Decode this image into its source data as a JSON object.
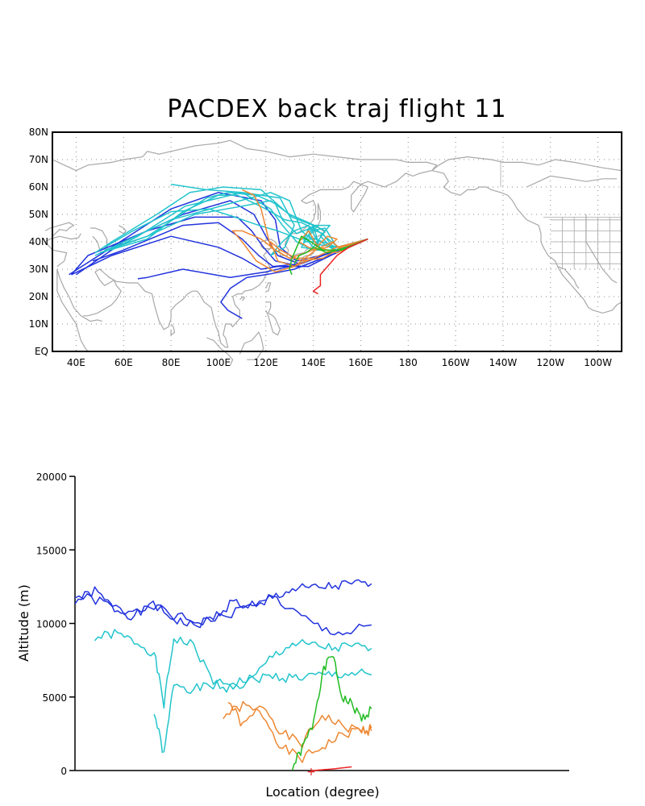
{
  "title": "PACDEX back traj flight 11",
  "colors": {
    "high": "#2233dd",
    "mid": "#22c4cc",
    "low": "#ee8833",
    "green": "#22bb22",
    "red": "#ee2222",
    "coast": "#a8a8a8",
    "grid": "#888888"
  },
  "map": {
    "lat_labels": [
      "80N",
      "70N",
      "60N",
      "50N",
      "40N",
      "30N",
      "20N",
      "10N",
      "EQ"
    ],
    "lon_labels": [
      "40E",
      "60E",
      "80E",
      "100E",
      "120E",
      "140E",
      "160E",
      "180",
      "160W",
      "140W",
      "120W",
      "100W"
    ],
    "lon_range": [
      30,
      270
    ],
    "lat_range": [
      0,
      80
    ],
    "grid": "dotted",
    "origin": "approx 163E, 41N"
  },
  "chart_data": {
    "type": "line",
    "xlabel": "Location (degree)",
    "ylabel": "Altitude (m)",
    "yticks": [
      "20000",
      "15000",
      "10000",
      "5000",
      "0"
    ],
    "ylim": [
      0,
      20000
    ],
    "x_axis_ticks": "none",
    "series": [
      {
        "color_key": "high",
        "x": [
          0,
          4,
          8,
          12,
          16,
          20,
          24,
          28,
          32,
          36,
          40,
          44,
          48,
          52,
          56,
          60
        ],
        "values": [
          11500,
          12200,
          11000,
          10500,
          11200,
          10300,
          9800,
          10400,
          11500,
          11000,
          11800,
          12300,
          12400,
          12500,
          12650,
          12700
        ]
      },
      {
        "color_key": "high",
        "x": [
          0,
          5,
          10,
          15,
          20,
          25,
          30,
          35,
          40,
          45,
          50,
          55,
          60
        ],
        "values": [
          11900,
          11500,
          10800,
          11300,
          10500,
          10100,
          10400,
          11200,
          11800,
          10600,
          9600,
          9300,
          9900
        ]
      },
      {
        "color_key": "mid",
        "x": [
          4,
          8,
          12,
          16,
          18,
          20,
          24,
          28,
          32,
          36,
          40,
          44,
          48,
          52,
          56,
          60
        ],
        "values": [
          9000,
          9300,
          8800,
          8000,
          4500,
          9000,
          8500,
          6000,
          5500,
          6200,
          7800,
          8600,
          8500,
          8300,
          8400,
          8300
        ]
      },
      {
        "color_key": "mid",
        "x": [
          16,
          18,
          20,
          24,
          28,
          32,
          36,
          40,
          44,
          48,
          52,
          56,
          60
        ],
        "values": [
          4000,
          1000,
          6000,
          5500,
          5800,
          6000,
          6200,
          6400,
          6300,
          6400,
          6500,
          6600,
          6500
        ]
      },
      {
        "color_key": "low",
        "x": [
          31,
          34,
          38,
          42,
          46,
          50,
          54,
          58,
          60
        ],
        "values": [
          4800,
          3000,
          4500,
          2500,
          1800,
          3800,
          3000,
          2700,
          2900
        ]
      },
      {
        "color_key": "low",
        "x": [
          30,
          34,
          38,
          42,
          46,
          50,
          54,
          58,
          60
        ],
        "values": [
          3700,
          4400,
          3800,
          1500,
          800,
          1600,
          2400,
          2800,
          2700
        ]
      },
      {
        "color_key": "green",
        "x": [
          44,
          46,
          48,
          50,
          52,
          54,
          56,
          58,
          60
        ],
        "values": [
          200,
          1500,
          3000,
          6500,
          8000,
          5000,
          4500,
          3500,
          4200
        ]
      },
      {
        "color_key": "red",
        "x": [
          48,
          52,
          56
        ],
        "values": [
          0,
          100,
          250
        ]
      }
    ]
  }
}
